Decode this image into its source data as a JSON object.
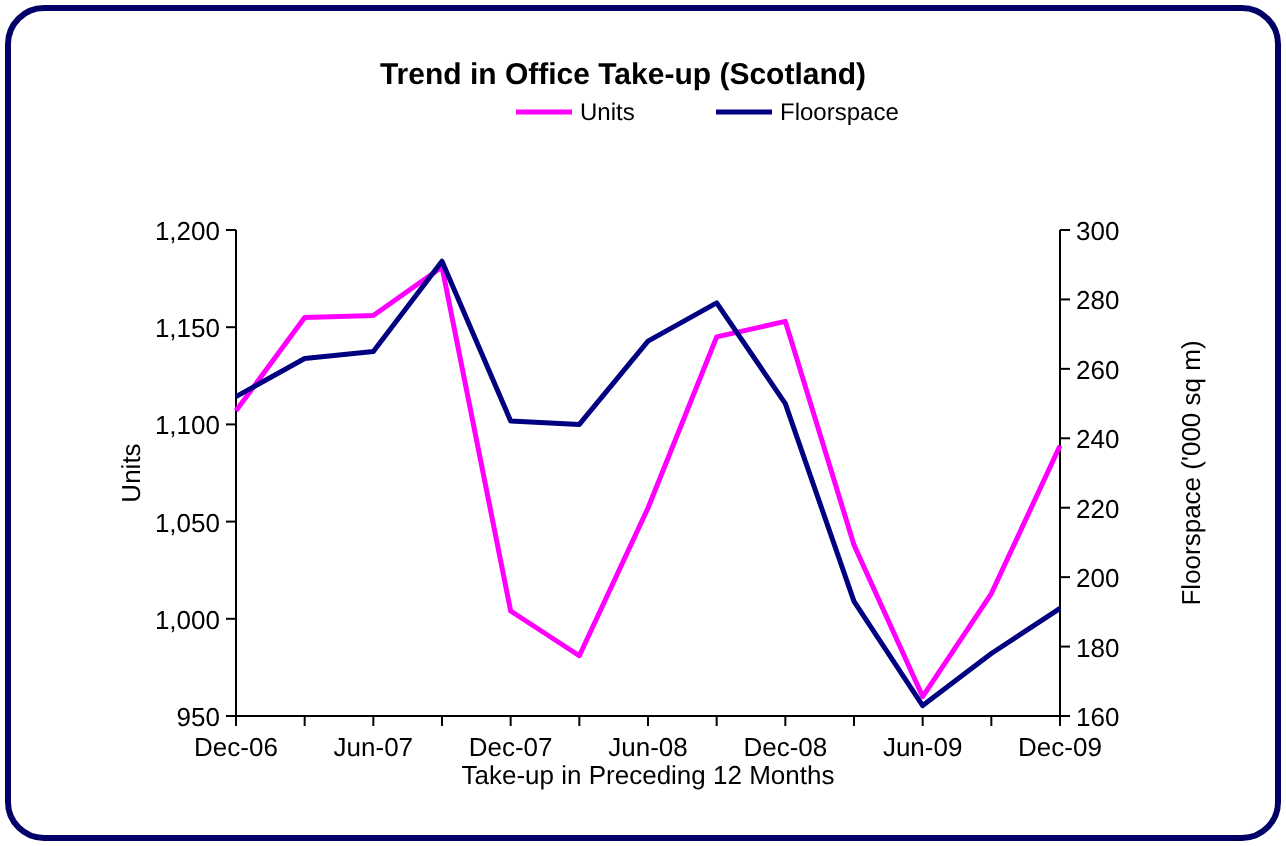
{
  "chart_data": {
    "type": "line",
    "title": "Trend in Office Take-up (Scotland)",
    "xlabel": "Take-up in Preceding 12 Months",
    "ylabel": "Units",
    "y2label": "Floorspace ('000 sq m)",
    "categories": [
      "Dec-06",
      null,
      "Jun-07",
      null,
      "Dec-07",
      null,
      "Jun-08",
      null,
      "Dec-08",
      null,
      "Jun-09",
      null,
      "Dec-09"
    ],
    "series": [
      {
        "name": "Units",
        "color": "#ff00ff",
        "values": [
          1107,
          1155,
          1156,
          1181,
          1004,
          981,
          1057,
          1145,
          1153,
          1038,
          960,
          1013,
          1089
        ]
      },
      {
        "name": "Floorspace",
        "color": "#000080",
        "axis": "y2",
        "values": [
          252,
          263,
          265,
          291,
          245,
          244,
          268,
          279,
          250,
          193,
          163,
          178,
          191
        ]
      }
    ],
    "ylim": [
      950,
      1200
    ],
    "yticks": [
      {
        "value": 950,
        "label": "950"
      },
      {
        "value": 1000,
        "label": "1,000"
      },
      {
        "value": 1050,
        "label": "1,050"
      },
      {
        "value": 1100,
        "label": "1,100"
      },
      {
        "value": 1150,
        "label": "1,150"
      },
      {
        "value": 1200,
        "label": "1,200"
      }
    ],
    "y2lim": [
      160,
      300
    ],
    "y2ticks": [
      160,
      180,
      200,
      220,
      240,
      260,
      280,
      300
    ],
    "grid": false,
    "legend": "top",
    "marker": "none",
    "line_style": "solid"
  }
}
